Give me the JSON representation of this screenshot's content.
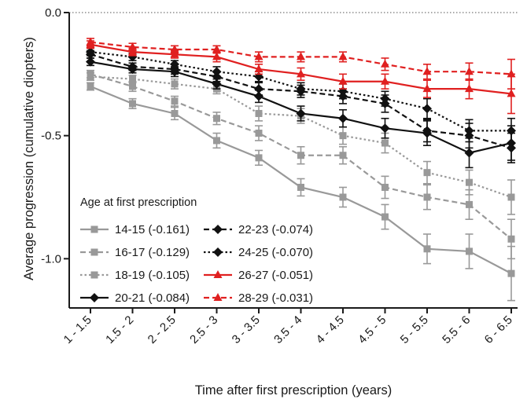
{
  "chart_data": {
    "type": "line",
    "xlabel": "Time after first prescription (years)",
    "ylabel": "Average progression (cumulative diopters)",
    "categories": [
      "1 - 1.5",
      "1.5 - 2",
      "2 - 2.5",
      "2.5 - 3",
      "3 - 3.5",
      "3.5 - 4",
      "4 - 4.5",
      "4.5 - 5",
      "5 - 5.5",
      "5.5 - 6",
      "6 - 6.5"
    ],
    "ylim": [
      -1.2,
      0.0
    ],
    "yticks": [
      {
        "value": 0.0,
        "label": "0.0"
      },
      {
        "value": -0.5,
        "label": "-0.5"
      },
      {
        "value": -1.0,
        "label": "-1.0"
      }
    ],
    "zero_line": {
      "style": "dotted",
      "color": "#555555"
    },
    "grid": false,
    "legend": {
      "title": "Age at first prescription",
      "placement": "bottom-left",
      "columns": 2
    },
    "series": [
      {
        "name": "14-15 (-0.161)",
        "color": "#999999",
        "dash": "solid",
        "marker": "square",
        "values": [
          -0.3,
          -0.37,
          -0.41,
          -0.52,
          -0.59,
          -0.71,
          -0.75,
          -0.83,
          -0.96,
          -0.97,
          -1.06
        ],
        "errors": [
          0.015,
          0.02,
          0.025,
          0.03,
          0.03,
          0.035,
          0.04,
          0.05,
          0.06,
          0.07,
          0.11
        ]
      },
      {
        "name": "16-17 (-0.129)",
        "color": "#999999",
        "dash": "dashed",
        "marker": "square",
        "values": [
          -0.25,
          -0.3,
          -0.36,
          -0.43,
          -0.49,
          -0.58,
          -0.58,
          -0.71,
          -0.75,
          -0.78,
          -0.92
        ],
        "errors": [
          0.015,
          0.02,
          0.02,
          0.025,
          0.03,
          0.035,
          0.035,
          0.045,
          0.05,
          0.06,
          0.08
        ]
      },
      {
        "name": "18-19 (-0.105)",
        "color": "#999999",
        "dash": "dotted",
        "marker": "square",
        "values": [
          -0.26,
          -0.27,
          -0.29,
          -0.31,
          -0.41,
          -0.42,
          -0.5,
          -0.53,
          -0.65,
          -0.69,
          -0.75
        ],
        "errors": [
          0.015,
          0.015,
          0.02,
          0.02,
          0.03,
          0.03,
          0.035,
          0.04,
          0.045,
          0.05,
          0.07
        ]
      },
      {
        "name": "20-21 (-0.084)",
        "color": "#111111",
        "dash": "solid",
        "marker": "diamond",
        "values": [
          -0.2,
          -0.23,
          -0.24,
          -0.29,
          -0.34,
          -0.41,
          -0.43,
          -0.47,
          -0.49,
          -0.57,
          -0.53
        ],
        "errors": [
          0.015,
          0.015,
          0.02,
          0.02,
          0.025,
          0.03,
          0.035,
          0.04,
          0.05,
          0.06,
          0.07
        ]
      },
      {
        "name": "22-23 (-0.074)",
        "color": "#111111",
        "dash": "dashed",
        "marker": "diamond",
        "values": [
          -0.17,
          -0.22,
          -0.23,
          -0.26,
          -0.31,
          -0.32,
          -0.34,
          -0.37,
          -0.48,
          -0.5,
          -0.55
        ],
        "errors": [
          0.015,
          0.015,
          0.02,
          0.02,
          0.025,
          0.025,
          0.03,
          0.035,
          0.045,
          0.05,
          0.06
        ]
      },
      {
        "name": "24-25 (-0.070)",
        "color": "#111111",
        "dash": "dotted",
        "marker": "diamond",
        "values": [
          -0.16,
          -0.18,
          -0.21,
          -0.24,
          -0.26,
          -0.31,
          -0.32,
          -0.35,
          -0.39,
          -0.48,
          -0.48
        ],
        "errors": [
          0.015,
          0.015,
          0.015,
          0.02,
          0.02,
          0.025,
          0.03,
          0.03,
          0.04,
          0.045,
          0.05
        ]
      },
      {
        "name": "26-27 (-0.051)",
        "color": "#e02020",
        "dash": "solid",
        "marker": "triangle",
        "values": [
          -0.13,
          -0.16,
          -0.17,
          -0.18,
          -0.23,
          -0.25,
          -0.28,
          -0.28,
          -0.31,
          -0.31,
          -0.33
        ],
        "errors": [
          0.015,
          0.015,
          0.015,
          0.02,
          0.02,
          0.025,
          0.03,
          0.03,
          0.035,
          0.04,
          0.08
        ]
      },
      {
        "name": "28-29 (-0.031)",
        "color": "#e02020",
        "dash": "dashed",
        "marker": "triangle",
        "values": [
          -0.12,
          -0.14,
          -0.15,
          -0.15,
          -0.18,
          -0.18,
          -0.18,
          -0.21,
          -0.24,
          -0.24,
          -0.25
        ],
        "errors": [
          0.015,
          0.015,
          0.015,
          0.015,
          0.02,
          0.02,
          0.02,
          0.025,
          0.03,
          0.035,
          0.06
        ]
      }
    ]
  }
}
